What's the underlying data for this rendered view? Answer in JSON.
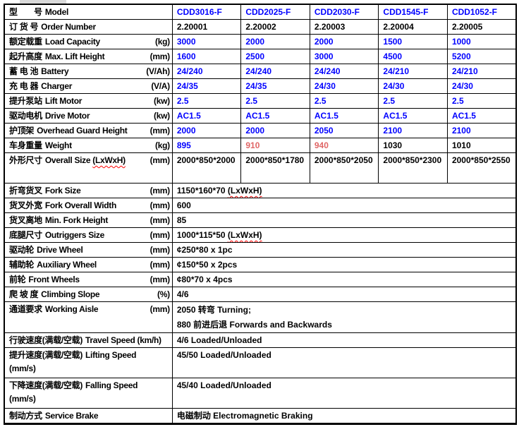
{
  "colors": {
    "blue": "#0000ff",
    "salmon": "#e06666",
    "black": "#000000",
    "border": "#000000",
    "artifact": "#d9d9d9"
  },
  "table": {
    "column_count": 6,
    "label_column_width": 237,
    "data_column_width": 97
  },
  "rows": [
    {
      "key": "model",
      "type": "grid",
      "cn": "型　　号",
      "en": "Model",
      "unit": "",
      "cells": [
        {
          "t": "CDD3016-F",
          "c": "blue"
        },
        {
          "t": "CDD2025-F",
          "c": "blue"
        },
        {
          "t": "CDD2030-F",
          "c": "blue"
        },
        {
          "t": "CDD1545-F",
          "c": "blue"
        },
        {
          "t": "CDD1052-F",
          "c": "blue"
        }
      ]
    },
    {
      "key": "order-number",
      "type": "grid",
      "cn": "订 货 号",
      "en": "Order Number",
      "unit": "",
      "cells": [
        {
          "t": "2.20001",
          "c": "black"
        },
        {
          "t": "2.20002",
          "c": "black"
        },
        {
          "t": "2.20003",
          "c": "black"
        },
        {
          "t": "2.20004",
          "c": "black"
        },
        {
          "t": "2.20005",
          "c": "black"
        }
      ]
    },
    {
      "key": "load-capacity",
      "type": "grid",
      "cn": "额定载重",
      "en": "Load Capacity",
      "unit": "(kg)",
      "cells": [
        {
          "t": "3000",
          "c": "blue"
        },
        {
          "t": "2000",
          "c": "blue"
        },
        {
          "t": "2000",
          "c": "blue"
        },
        {
          "t": "1500",
          "c": "blue"
        },
        {
          "t": "1000",
          "c": "blue"
        }
      ]
    },
    {
      "key": "max-lift-height",
      "type": "grid",
      "cn": "起升高度",
      "en": "Max. Lift Height",
      "unit": "(mm)",
      "cells": [
        {
          "t": "1600",
          "c": "blue"
        },
        {
          "t": "2500",
          "c": "blue"
        },
        {
          "t": "3000",
          "c": "blue"
        },
        {
          "t": "4500",
          "c": "blue"
        },
        {
          "t": "5200",
          "c": "blue"
        }
      ]
    },
    {
      "key": "battery",
      "type": "grid",
      "cn": "蓄 电 池",
      "en": "Battery",
      "unit": "(V/Ah)",
      "cells": [
        {
          "t": "24/240",
          "c": "blue"
        },
        {
          "t": "24/240",
          "c": "blue"
        },
        {
          "t": "24/240",
          "c": "blue"
        },
        {
          "t": "24/210",
          "c": "blue"
        },
        {
          "t": "24/210",
          "c": "blue"
        }
      ]
    },
    {
      "key": "charger",
      "type": "grid",
      "cn": "充 电 器",
      "en": "Charger",
      "unit": "(V/A)",
      "cells": [
        {
          "t": "24/35",
          "c": "blue"
        },
        {
          "t": "24/35",
          "c": "blue"
        },
        {
          "t": "24/30",
          "c": "blue"
        },
        {
          "t": "24/30",
          "c": "blue"
        },
        {
          "t": "24/30",
          "c": "blue"
        }
      ]
    },
    {
      "key": "lift-motor",
      "type": "grid",
      "cn": "提升泵站",
      "en": "Lift Motor",
      "unit": "(kw)",
      "cells": [
        {
          "t": "2.5",
          "c": "blue"
        },
        {
          "t": "2.5",
          "c": "blue"
        },
        {
          "t": "2.5",
          "c": "blue"
        },
        {
          "t": "2.5",
          "c": "blue"
        },
        {
          "t": "2.5",
          "c": "blue"
        }
      ]
    },
    {
      "key": "drive-motor",
      "type": "grid",
      "cn": "驱动电机",
      "en": "Drive Motor",
      "unit": "(kw)",
      "cells": [
        {
          "t": "AC1.5",
          "c": "blue"
        },
        {
          "t": "AC1.5",
          "c": "blue"
        },
        {
          "t": "AC1.5",
          "c": "blue"
        },
        {
          "t": "AC1.5",
          "c": "blue"
        },
        {
          "t": "AC1.5",
          "c": "blue"
        }
      ]
    },
    {
      "key": "overhead-guard-height",
      "type": "grid",
      "cn": "护顶架",
      "en": "Overhead Guard Height",
      "unit": "(mm)",
      "cells": [
        {
          "t": "2000",
          "c": "blue"
        },
        {
          "t": "2000",
          "c": "blue"
        },
        {
          "t": "2050",
          "c": "blue"
        },
        {
          "t": "2100",
          "c": "blue"
        },
        {
          "t": "2100",
          "c": "blue"
        }
      ]
    },
    {
      "key": "weight",
      "type": "grid",
      "cn": "车身重量",
      "en": "Weight",
      "unit": "(kg)",
      "cells": [
        {
          "t": "895",
          "c": "blue"
        },
        {
          "t": "910",
          "c": "salmon"
        },
        {
          "t": "940",
          "c": "salmon"
        },
        {
          "t": "1030",
          "c": "black"
        },
        {
          "t": "1010",
          "c": "black"
        }
      ]
    },
    {
      "key": "overall-size",
      "type": "grid",
      "tall": true,
      "cn": "外形尺寸",
      "en": "Overall Size",
      "en_wavy": "(LxWxH)",
      "unit": "(mm)",
      "cells": [
        {
          "t": "2000*850*2000",
          "c": "black"
        },
        {
          "t": "2000*850*1780",
          "c": "black"
        },
        {
          "t": "2000*850*2050",
          "c": "black"
        },
        {
          "t": "2000*850*2300",
          "c": "black"
        },
        {
          "t": "2000*850*2550",
          "c": "black"
        }
      ]
    },
    {
      "key": "fork-size",
      "type": "span",
      "cn": "折弯货叉",
      "en": "Fork Size",
      "unit": "(mm)",
      "value": "1150*160*70 ",
      "value_wavy": "(LxWxH)"
    },
    {
      "key": "fork-overall-width",
      "type": "span",
      "cn": "货叉外宽",
      "en": "Fork Overall Width",
      "unit": "(mm)",
      "value": "600"
    },
    {
      "key": "min-fork-height",
      "type": "span",
      "cn": "货叉离地",
      "en": "Min. Fork Height",
      "unit": "(mm)",
      "value": "85"
    },
    {
      "key": "outriggers-size",
      "type": "span",
      "cn": "底腿尺寸",
      "en": "Outriggers Size",
      "unit": "(mm)",
      "value": "1000*115*50 ",
      "value_wavy": "(LxWxH)"
    },
    {
      "key": "drive-wheel",
      "type": "span",
      "cn": "驱动轮",
      "en": "Drive Wheel",
      "unit": "(mm)",
      "value": "¢250*80 x 1pc"
    },
    {
      "key": "auxiliary-wheel",
      "type": "span",
      "cn": "辅助轮",
      "en": "Auxiliary Wheel",
      "unit": "(mm)",
      "value": "¢150*50 x 2pcs"
    },
    {
      "key": "front-wheels",
      "type": "span",
      "cn": "前轮",
      "en": "Front Wheels",
      "unit": "(mm)",
      "value": "¢80*70 x 4pcs"
    },
    {
      "key": "climbing-slope",
      "type": "span",
      "cn": "爬 坡 度",
      "en": "Climbing Slope",
      "unit": "(%)",
      "value": "4/6"
    },
    {
      "key": "working-aisle",
      "type": "span",
      "tall": true,
      "cn": "通道要求",
      "en": "Working Aisle",
      "unit": "(mm)",
      "value_lines": [
        "2050 转弯 Turning;",
        "880 前进后退 Forwards and Backwards"
      ]
    },
    {
      "key": "travel-speed",
      "type": "span",
      "cn": "行驶速度(满载/空载)",
      "en": "Travel Speed (km/h)",
      "unit": "",
      "value": "4/6 Loaded/Unloaded"
    },
    {
      "key": "lifting-speed",
      "type": "span",
      "tall": true,
      "cn": "提升速度(满载/空载)",
      "en": "Lifting  Speed",
      "unit": "",
      "unit_break": "(mm/s)",
      "value": "45/50 Loaded/Unloaded"
    },
    {
      "key": "falling-speed",
      "type": "span",
      "tall": true,
      "cn": "下降速度(满载/空载)",
      "en": "Falling Speed",
      "unit": "",
      "unit_break": "(mm/s)",
      "value": "45/40 Loaded/Unloaded"
    },
    {
      "key": "service-brake",
      "type": "span",
      "cn": "制动方式",
      "en": "Service Brake",
      "unit": "",
      "value": "电磁制动 Electromagnetic Braking"
    }
  ]
}
